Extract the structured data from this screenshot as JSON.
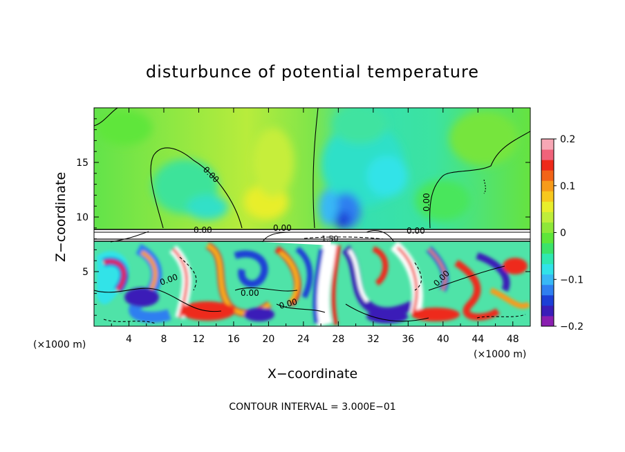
{
  "chart_data": {
    "type": "heatmap",
    "title": "disturbunce of potential temperature",
    "xlabel": "X−coordinate",
    "ylabel": "Z−coordinate",
    "x_unit": "(×1000 m)",
    "x_unit_right": "(×1000 m)",
    "xlim": [
      0,
      50
    ],
    "ylim": [
      0,
      20
    ],
    "x_ticks": [
      4,
      8,
      12,
      16,
      20,
      24,
      28,
      32,
      36,
      40,
      44,
      48
    ],
    "y_ticks": [
      5,
      10,
      15
    ],
    "colorbar": {
      "range": [
        -0.2,
        0.2
      ],
      "tick_values": [
        0.2,
        0.1,
        0,
        -0.1,
        -0.2
      ],
      "tick_labels": [
        "0.2",
        "0.1",
        "0",
        "−0.1",
        "−0.2"
      ],
      "colors": [
        "#8a1fb0",
        "#3a1db8",
        "#1c3fd6",
        "#2f7ff0",
        "#38b8f5",
        "#31e3e8",
        "#2fe8b0",
        "#3be36a",
        "#5ee63a",
        "#8ee839",
        "#bfee3a",
        "#e8ee2c",
        "#f7c81e",
        "#f79b1a",
        "#f26418",
        "#ee2a1a",
        "#f0637a",
        "#f7a7b5"
      ]
    },
    "contour_labels": [
      "0.00",
      "0.00",
      "0.00",
      "0.00",
      "0.00",
      "0.00",
      "0.00",
      "0.00",
      "0.00",
      "1.50"
    ],
    "footer": "CONTOUR INTERVAL = 3.000E−01",
    "grid": false,
    "legend": "colorbar right"
  }
}
